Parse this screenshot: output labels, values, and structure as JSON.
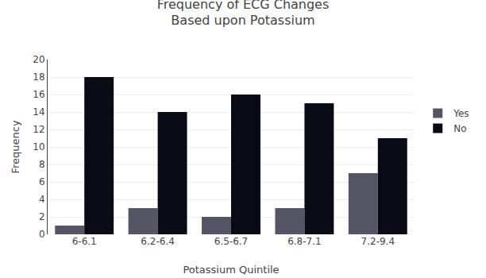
{
  "chart_data": {
    "type": "bar",
    "title": "Frequency of ECG Changes\nBased upon Potassium",
    "x_label": "Potassium Quintile",
    "y_label": "Frequency",
    "categories": [
      "6-6.1",
      "6.2-6.4",
      "6.5-6.7",
      "6.8-7.1",
      "7.2-9.4"
    ],
    "series": [
      {
        "name": "Yes",
        "color": "#555566",
        "values": [
          1,
          3,
          2,
          3,
          7
        ]
      },
      {
        "name": "No",
        "color": "#0a0a14",
        "values": [
          18,
          14,
          16,
          15,
          11
        ]
      }
    ],
    "ylim": [
      0,
      20
    ],
    "yticks": [
      0,
      2,
      4,
      6,
      8,
      10,
      12,
      14,
      16,
      18,
      20
    ],
    "grid": true,
    "legend": "right"
  }
}
